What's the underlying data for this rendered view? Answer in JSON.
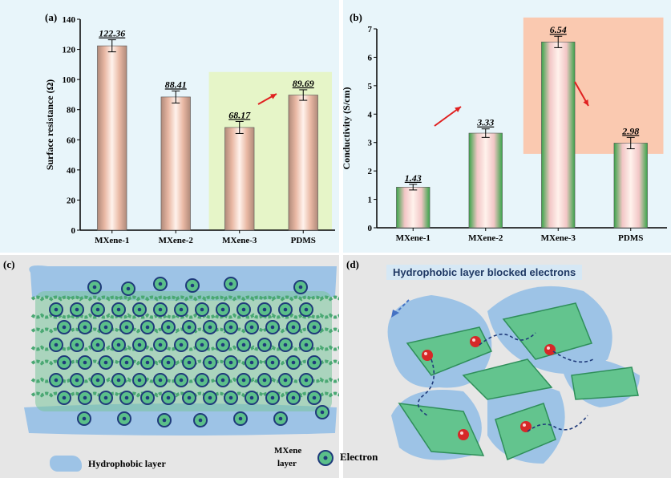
{
  "panel_labels": [
    "(a)",
    "(b)",
    "(c)",
    "(d)"
  ],
  "chart_data": [
    {
      "type": "bar",
      "panel": "(a)",
      "categories": [
        "MXene-1",
        "MXene-2",
        "MXene-3",
        "PDMS"
      ],
      "values": [
        122.36,
        88.41,
        68.17,
        89.69
      ],
      "value_labels": [
        "122.36",
        "88.41",
        "68.17",
        "89.69"
      ],
      "error": [
        4,
        4,
        4,
        3.5
      ],
      "ylabel": "Surface resistance (Ω)",
      "ylim": [
        0,
        140
      ],
      "yticks": [
        0,
        20,
        40,
        60,
        80,
        100,
        120,
        140
      ],
      "highlight": {
        "from_category": "MXene-3",
        "to_category": "PDMS",
        "color": "#e6f5c8"
      },
      "bar_color": "#e9b8a4"
    },
    {
      "type": "bar",
      "panel": "(b)",
      "categories": [
        "MXene-1",
        "MXene-2",
        "MXene-3",
        "PDMS"
      ],
      "values": [
        1.43,
        3.33,
        6.54,
        2.98
      ],
      "value_labels": [
        "1.43",
        "3.33",
        "6.54",
        "2.98"
      ],
      "error": [
        0.1,
        0.15,
        0.2,
        0.2
      ],
      "ylabel": "Conductivity  (S/cm)",
      "ylim": [
        0,
        7
      ],
      "yticks": [
        0,
        1,
        2,
        3,
        4,
        5,
        6,
        7
      ],
      "highlight": {
        "from_category": "MXene-3",
        "to_category": "PDMS",
        "color": "#fac9b0"
      },
      "bar_color": "#f2c6c6",
      "bar_edge_color": "#3aa44a"
    }
  ],
  "panel_c": {
    "legend": {
      "hydrophobic": "Hydrophobic layer",
      "mxene_line1": "MXene",
      "mxene_line2": "layer",
      "electron": "Electron"
    },
    "colors": {
      "hydrophobic": "#9dc3e6",
      "mxene": "#5bbf8a",
      "electron_ring": "#1f3a7a"
    }
  },
  "panel_d": {
    "caption": "Hydrophobic layer blocked electrons",
    "colors": {
      "flake": "#63c48e",
      "shell": "#9dc3e6",
      "electron": "#d62828"
    }
  }
}
